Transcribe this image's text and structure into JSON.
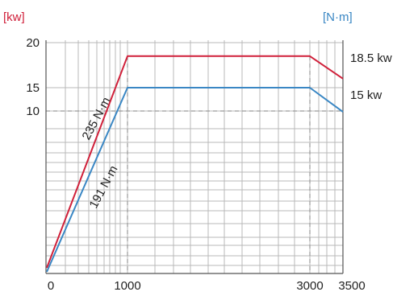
{
  "chart_data": {
    "type": "line",
    "title": "",
    "xlabel": "",
    "ylabel_left": "[kw]",
    "ylabel_right": "[N·m]",
    "x_tick_labels": [
      "0",
      "1000",
      "3000",
      "3500"
    ],
    "x_ticks": [
      0,
      1000,
      3000,
      3500
    ],
    "xlim": [
      0,
      3500
    ],
    "y_tick_labels": [
      "20",
      "15",
      "10"
    ],
    "y_ticks": [
      20,
      15,
      10
    ],
    "ylim": [
      0,
      20
    ],
    "grid": true,
    "series": [
      {
        "name": "235 N·m",
        "color": "#d0203a",
        "x": [
          0,
          1000,
          3000,
          3500
        ],
        "y": [
          0,
          18.5,
          18.5,
          16
        ]
      },
      {
        "name": "191 N·m",
        "color": "#3a87c4",
        "x": [
          0,
          1000,
          3000,
          3500
        ],
        "y": [
          0,
          15,
          15,
          13
        ]
      }
    ],
    "annotations": {
      "red_series_label": "235 N·m",
      "blue_series_label": "191 N·m",
      "red_end_label": "18.5 kw",
      "blue_end_label": "15 kw"
    },
    "colors": {
      "left_unit": "#d0203a",
      "right_unit": "#3a87c4",
      "grid": "#b8b8b8",
      "dashed": "#999999"
    }
  }
}
